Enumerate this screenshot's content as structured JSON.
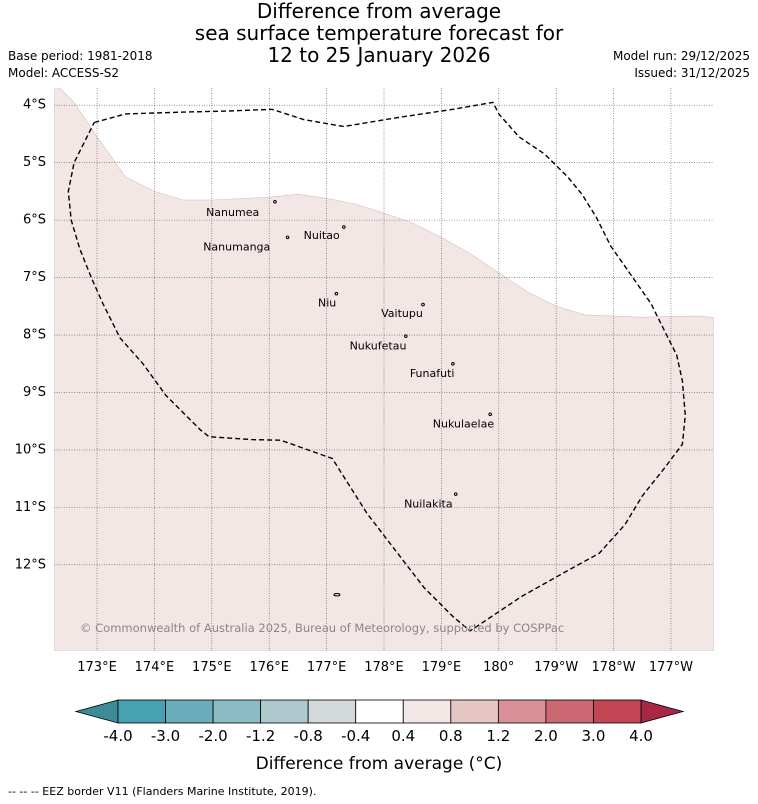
{
  "title": {
    "line1": "Difference from average",
    "line2": "sea surface temperature forecast for",
    "line3": "12 to 25 January 2026"
  },
  "meta": {
    "base_period": "Base period: 1981-2018",
    "model": "Model: ACCESS-S2",
    "model_run": "Model run: 29/12/2025",
    "issued": "Issued: 31/12/2025"
  },
  "map": {
    "lat_range": [
      -13.5,
      -3.7
    ],
    "lon_range": [
      172.25,
      183.75
    ],
    "lat_ticks": [
      {
        "value": -4,
        "label": "4°S"
      },
      {
        "value": -5,
        "label": "5°S"
      },
      {
        "value": -6,
        "label": "6°S"
      },
      {
        "value": -7,
        "label": "7°S"
      },
      {
        "value": -8,
        "label": "8°S"
      },
      {
        "value": -9,
        "label": "9°S"
      },
      {
        "value": -10,
        "label": "10°S"
      },
      {
        "value": -11,
        "label": "11°S"
      },
      {
        "value": -12,
        "label": "12°S"
      }
    ],
    "lon_ticks": [
      {
        "value": 173,
        "label": "173°E"
      },
      {
        "value": 174,
        "label": "174°E"
      },
      {
        "value": 175,
        "label": "175°E"
      },
      {
        "value": 176,
        "label": "176°E"
      },
      {
        "value": 177,
        "label": "177°E"
      },
      {
        "value": 178,
        "label": "178°E"
      },
      {
        "value": 179,
        "label": "179°E"
      },
      {
        "value": 180,
        "label": "180°"
      },
      {
        "value": 181,
        "label": "179°W"
      },
      {
        "value": 182,
        "label": "178°W"
      },
      {
        "value": 183,
        "label": "177°W"
      }
    ],
    "shaded_color": "#f3e7e5",
    "shaded_band": "0.4 to 0.8",
    "shade_boundary": [
      [
        172.25,
        -3.7
      ],
      [
        172.35,
        -3.7
      ],
      [
        172.6,
        -3.95
      ],
      [
        173.0,
        -4.55
      ],
      [
        173.5,
        -5.25
      ],
      [
        174.0,
        -5.5
      ],
      [
        174.5,
        -5.65
      ],
      [
        175.0,
        -5.65
      ],
      [
        176.0,
        -5.6
      ],
      [
        176.5,
        -5.55
      ],
      [
        177.0,
        -5.62
      ],
      [
        177.5,
        -5.72
      ],
      [
        178.0,
        -5.88
      ],
      [
        178.5,
        -6.05
      ],
      [
        179.0,
        -6.3
      ],
      [
        179.5,
        -6.58
      ],
      [
        180.0,
        -6.92
      ],
      [
        180.5,
        -7.25
      ],
      [
        181.0,
        -7.5
      ],
      [
        181.5,
        -7.65
      ],
      [
        182.0,
        -7.67
      ],
      [
        182.5,
        -7.69
      ],
      [
        183.0,
        -7.68
      ],
      [
        183.5,
        -7.67
      ],
      [
        183.75,
        -7.7
      ]
    ],
    "eez_border": [
      [
        172.95,
        -4.3
      ],
      [
        173.5,
        -4.15
      ],
      [
        174.5,
        -4.12
      ],
      [
        175.3,
        -4.1
      ],
      [
        176.05,
        -4.07
      ],
      [
        176.6,
        -4.25
      ],
      [
        177.3,
        -4.37
      ],
      [
        178.2,
        -4.22
      ],
      [
        179.2,
        -4.07
      ],
      [
        179.9,
        -3.95
      ],
      [
        180.0,
        -4.15
      ],
      [
        180.35,
        -4.55
      ],
      [
        180.8,
        -4.85
      ],
      [
        181.2,
        -5.25
      ],
      [
        181.45,
        -5.55
      ],
      [
        181.7,
        -5.95
      ],
      [
        181.95,
        -6.45
      ],
      [
        182.3,
        -6.95
      ],
      [
        182.65,
        -7.45
      ],
      [
        182.9,
        -7.95
      ],
      [
        183.1,
        -8.35
      ],
      [
        183.2,
        -8.8
      ],
      [
        183.25,
        -9.4
      ],
      [
        183.2,
        -9.9
      ],
      [
        182.9,
        -10.3
      ],
      [
        182.5,
        -10.8
      ],
      [
        182.2,
        -11.3
      ],
      [
        181.75,
        -11.8
      ],
      [
        181.2,
        -12.1
      ],
      [
        180.4,
        -12.55
      ],
      [
        179.5,
        -13.15
      ],
      [
        179.2,
        -12.9
      ],
      [
        178.7,
        -12.4
      ],
      [
        178.2,
        -11.75
      ],
      [
        177.7,
        -11.1
      ],
      [
        177.1,
        -10.15
      ],
      [
        176.2,
        -9.83
      ],
      [
        175.7,
        -9.82
      ],
      [
        174.95,
        -9.77
      ],
      [
        174.8,
        -9.65
      ],
      [
        174.2,
        -9.05
      ],
      [
        173.8,
        -8.5
      ],
      [
        173.4,
        -8.05
      ],
      [
        173.1,
        -7.45
      ],
      [
        172.9,
        -7.0
      ],
      [
        172.7,
        -6.5
      ],
      [
        172.55,
        -6.0
      ],
      [
        172.5,
        -5.5
      ],
      [
        172.6,
        -5.0
      ],
      [
        172.8,
        -4.6
      ],
      [
        172.95,
        -4.3
      ]
    ],
    "islands": [
      {
        "name": "Nanumea",
        "lon": 176.1,
        "lat": -5.68,
        "label_lon": 174.9,
        "label_lat": -5.88
      },
      {
        "name": "Nuitao",
        "lon": 177.3,
        "lat": -6.12,
        "label_lon": 176.6,
        "label_lat": -6.28
      },
      {
        "name": "Nanumanga",
        "lon": 176.32,
        "lat": -6.3,
        "label_lon": 174.85,
        "label_lat": -6.48
      },
      {
        "name": "Niu",
        "lon": 177.17,
        "lat": -7.28,
        "label_lon": 176.85,
        "label_lat": -7.45
      },
      {
        "name": "Vaitupu",
        "lon": 178.68,
        "lat": -7.47,
        "label_lon": 177.95,
        "label_lat": -7.63
      },
      {
        "name": "Nukufetau",
        "lon": 178.38,
        "lat": -8.02,
        "label_lon": 177.4,
        "label_lat": -8.2
      },
      {
        "name": "Funafuti",
        "lon": 179.2,
        "lat": -8.5,
        "label_lon": 178.45,
        "label_lat": -8.68
      },
      {
        "name": "Nukulaelae",
        "lon": 179.85,
        "lat": -9.38,
        "label_lon": 178.85,
        "label_lat": -9.56
      },
      {
        "name": "Nuilakita",
        "lon": 179.25,
        "lat": -10.77,
        "label_lon": 178.35,
        "label_lat": -10.95
      },
      {
        "name": "",
        "lon": 177.18,
        "lat": -12.52,
        "label_lon": 177.18,
        "label_lat": -12.52
      }
    ],
    "copyright": "© Commonwealth of Australia 2025, Bureau of Meteorology, supported by COSPPac"
  },
  "colorbar": {
    "ticks": [
      "-4.0",
      "-3.0",
      "-2.0",
      "-1.2",
      "-0.8",
      "-0.4",
      "0.4",
      "0.8",
      "1.2",
      "2.0",
      "3.0",
      "4.0"
    ],
    "colors": [
      "#47a1b0",
      "#6aacba",
      "#8bbbc4",
      "#adc9cd",
      "#d3d9db",
      "#ffffff",
      "#f3e7e5",
      "#e6c6c2",
      "#d89096",
      "#cc6872",
      "#c24653"
    ],
    "under_color": "#3d8b96",
    "over_color": "#a72845",
    "label": "Difference from average (°C)"
  },
  "footnote": "-- -- -- EEZ border V11 (Flanders Marine Institute, 2019)."
}
